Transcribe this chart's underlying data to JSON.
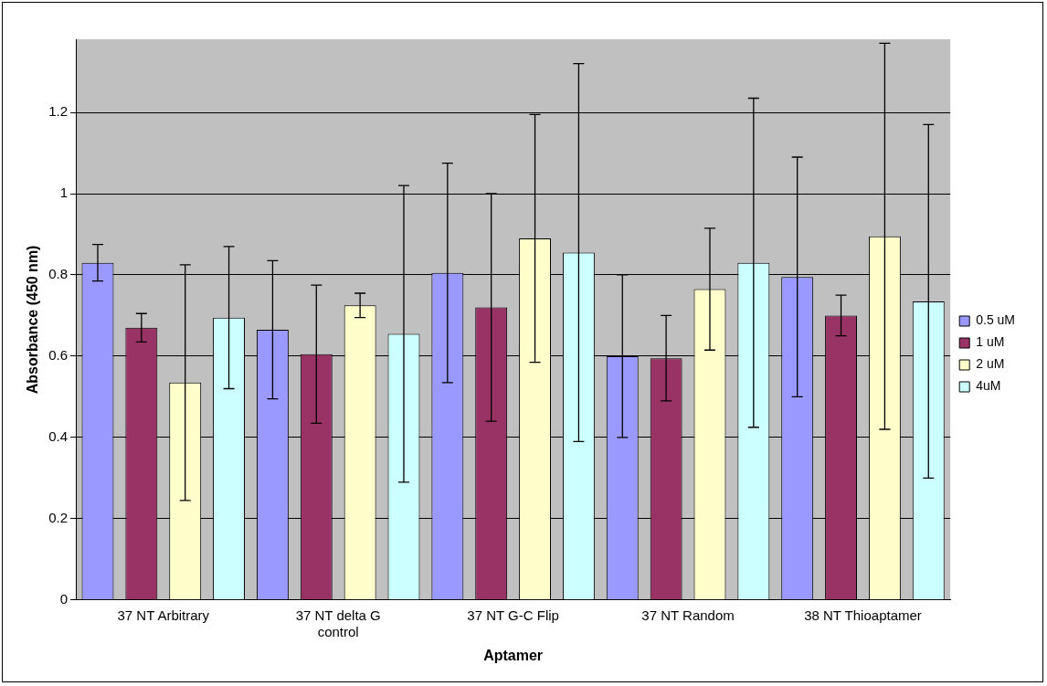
{
  "chart_data": {
    "type": "bar",
    "xlabel": "Aptamer",
    "ylabel": "Absorbance (450 nm)",
    "categories": [
      "37 NT Arbitrary",
      "37 NT delta G control",
      "37 NT G-C Flip",
      "37 NT Random",
      "38 NT Thioaptamer"
    ],
    "series": [
      {
        "name": "0.5 uM",
        "color": "#9999ff",
        "values": [
          0.83,
          0.665,
          0.805,
          0.6,
          0.795
        ],
        "errors": [
          0.045,
          0.17,
          0.27,
          0.2,
          0.295
        ]
      },
      {
        "name": "1 uM",
        "color": "#993366",
        "values": [
          0.67,
          0.605,
          0.72,
          0.595,
          0.7
        ],
        "errors": [
          0.035,
          0.17,
          0.28,
          0.105,
          0.05
        ]
      },
      {
        "name": "2 uM",
        "color": "#ffffcc",
        "values": [
          0.535,
          0.725,
          0.89,
          0.765,
          0.895
        ],
        "errors": [
          0.29,
          0.03,
          0.305,
          0.15,
          0.475
        ]
      },
      {
        "name": "4uM",
        "color": "#ccffff",
        "values": [
          0.695,
          0.655,
          0.855,
          0.83,
          0.735
        ],
        "errors": [
          0.175,
          0.365,
          0.465,
          0.405,
          0.435
        ]
      }
    ],
    "ylim": [
      0,
      1.38
    ],
    "yticks": [
      0,
      0.2,
      0.4,
      0.6,
      0.8,
      1,
      1.2
    ],
    "grid": "y",
    "legend": "right"
  }
}
